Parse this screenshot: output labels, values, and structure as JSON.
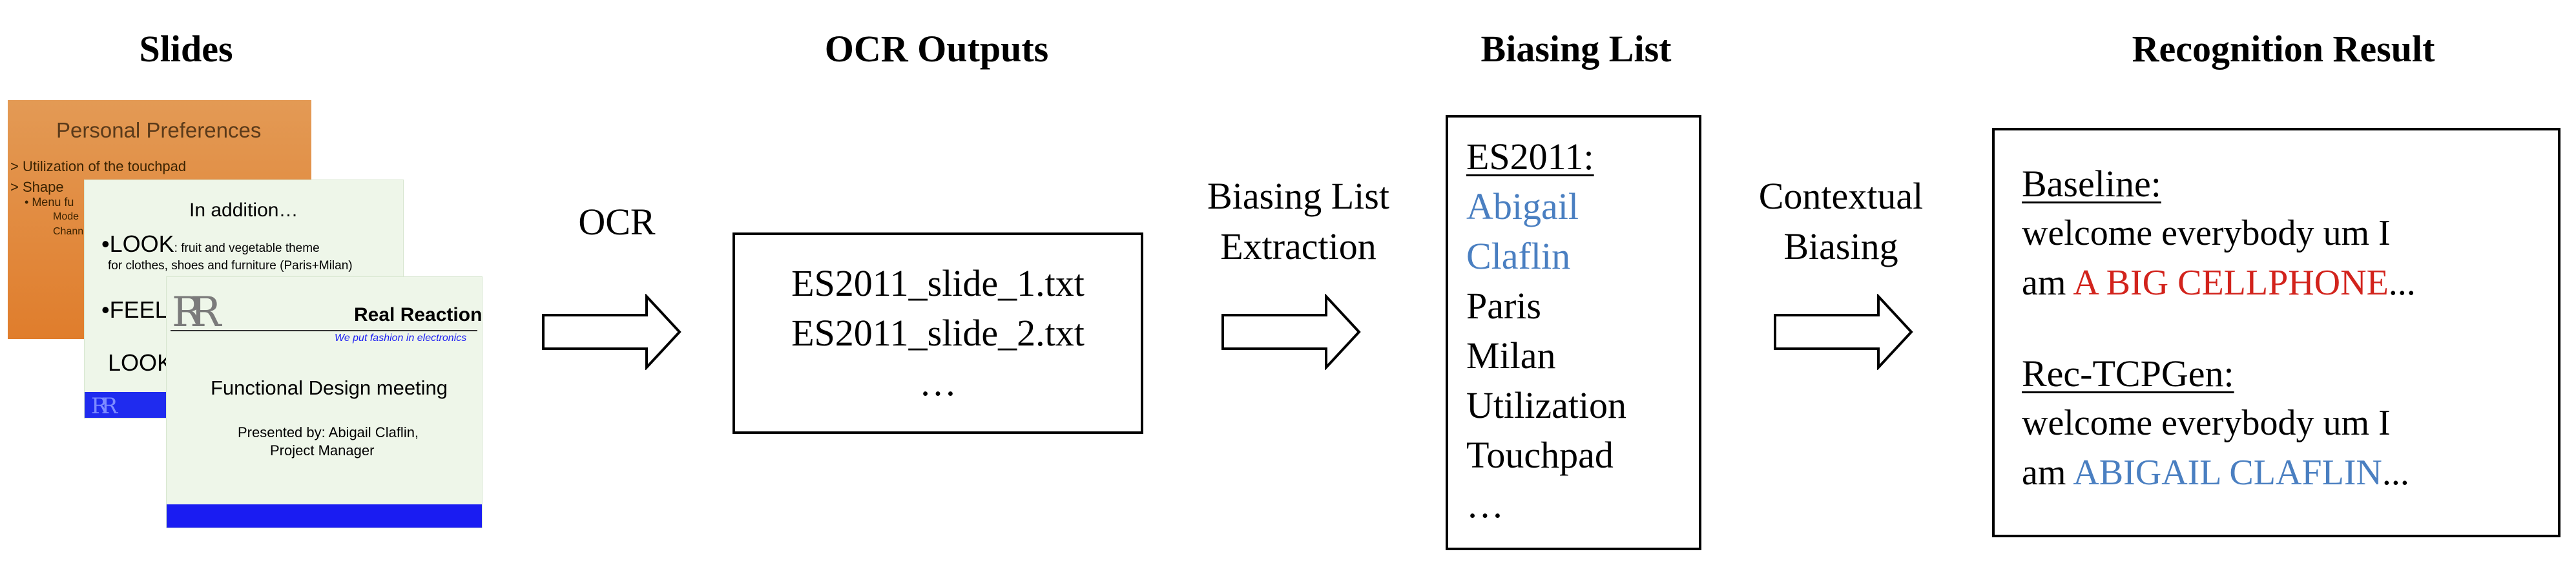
{
  "headings": {
    "slides": "Slides",
    "ocr_outputs": "OCR Outputs",
    "biasing_list": "Biasing List",
    "recognition_result": "Recognition Result"
  },
  "slides": {
    "slide1": {
      "title": "Personal Preferences",
      "line1": "Utilization of the touchpad",
      "line2": "Shape",
      "line3": "Menu fu",
      "line4": "Mode",
      "line5": "Chann",
      "colors": {
        "top": "#e39a55",
        "bottom": "#e07d2c"
      }
    },
    "slide2": {
      "title": "In addition…",
      "look_label": "LOOK",
      "look_text": ": fruit and vegetable theme",
      "look_text2": "for clothes, shoes and furniture (Paris+Milan)",
      "feel_label": "FEEL",
      "look2_label": "LOOK",
      "logo": "RR",
      "background": "#eef6e9",
      "band_color": "#1f2bef"
    },
    "slide3": {
      "logo": "RR",
      "company": "Real Reaction",
      "tagline": "We put fashion in electronics",
      "title": "Functional Design meeting",
      "presented_by": "Presented by: Abigail Claflin,",
      "role": "Project Manager",
      "background": "#eef6e9",
      "band_color": "#1a1cf2"
    }
  },
  "steps": {
    "ocr": "OCR",
    "biasing_extraction_line1": "Biasing List",
    "biasing_extraction_line2": "Extraction",
    "contextual_line1": "Contextual",
    "contextual_line2": "Biasing"
  },
  "ocr_box": {
    "file1": "ES2011_slide_1.txt",
    "file2": "ES2011_slide_2.txt",
    "ellipsis": "…"
  },
  "biasing_box": {
    "header": "ES2011:",
    "items": [
      "Abigail",
      "Claflin",
      "Paris",
      "Milan",
      "Utilization",
      "Touchpad",
      "…"
    ],
    "highlighted_count": 2
  },
  "result_box": {
    "baseline_label": "Baseline:",
    "baseline_line1": "welcome everybody um I",
    "baseline_prefix": "am ",
    "baseline_error": "A BIG CELLPHONE",
    "baseline_suffix": "...",
    "tcpgen_label": "Rec-TCPGen:",
    "tcpgen_line1": "welcome everybody um I",
    "tcpgen_prefix": "am ",
    "tcpgen_correct": "ABIGAIL CLAFLIN",
    "tcpgen_suffix": "..."
  },
  "colors": {
    "highlight_blue": "#4a7fc1",
    "error_red": "#d2231c"
  }
}
